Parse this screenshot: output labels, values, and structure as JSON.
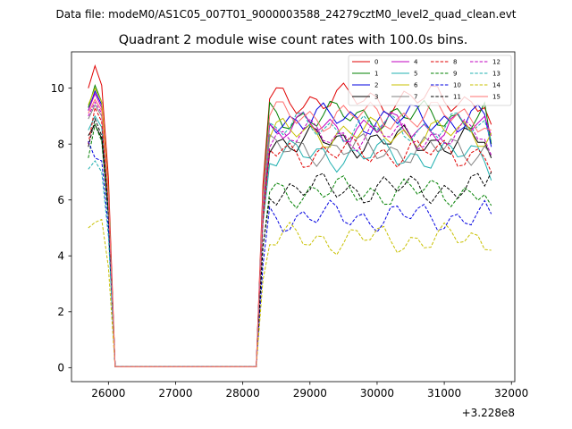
{
  "suptitle": "Data file: modeM0/AS1C05_007T01_9000003588_24279cztM0_level2_quad_clean.evt",
  "chart_data": {
    "type": "line",
    "title": "Quadrant 2 module wise count rates with 100.0s bins.",
    "xlabel": "",
    "ylabel": "",
    "x_offset_label": "+3.228e8",
    "xlim": [
      25450,
      32050
    ],
    "ylim": [
      -0.5,
      11.3
    ],
    "xticks": [
      26000,
      27000,
      28000,
      29000,
      30000,
      31000,
      32000
    ],
    "xtick_labels": [
      "26000",
      "27000",
      "28000",
      "29000",
      "30000",
      "31000",
      "32000"
    ],
    "yticks": [
      0,
      2,
      4,
      6,
      8,
      10
    ],
    "ytick_labels": [
      "0",
      "2",
      "4",
      "6",
      "8",
      "10"
    ],
    "grid": false,
    "legend_position": "top-right",
    "x": [
      25700,
      25800,
      25900,
      26000,
      26100,
      26200,
      26300,
      26400,
      26500,
      26600,
      26700,
      26800,
      26900,
      27000,
      27100,
      27200,
      27300,
      27400,
      27500,
      27600,
      27700,
      27800,
      27900,
      28000,
      28100,
      28200,
      28300,
      28400,
      28500,
      28600,
      28700,
      28800,
      28900,
      29000,
      29100,
      29200,
      29300,
      29400,
      29500,
      29600,
      29700,
      29800,
      29900,
      30000,
      30100,
      30200,
      30300,
      30400,
      30500,
      30600,
      30700,
      30800,
      30900,
      31000,
      31100,
      31200,
      31300,
      31400,
      31500,
      31600,
      31700
    ],
    "series": [
      {
        "name": "0",
        "color": "#e00000",
        "dash": "solid",
        "start": [
          10.0,
          10.8,
          10.1,
          6.8
        ],
        "plateau": 9.6,
        "end": 8.7
      },
      {
        "name": "1",
        "color": "#008000",
        "dash": "solid",
        "start": [
          9.3,
          10.1,
          9.5,
          6.3
        ],
        "plateau": 9.0,
        "end": 8.0
      },
      {
        "name": "2",
        "color": "#0000e0",
        "dash": "solid",
        "start": [
          9.2,
          9.9,
          9.4,
          6.2
        ],
        "plateau": 8.9,
        "end": 7.9
      },
      {
        "name": "3",
        "color": "#000000",
        "dash": "solid",
        "start": [
          8.3,
          8.7,
          8.2,
          5.5
        ],
        "plateau": 8.1,
        "end": 7.5
      },
      {
        "name": "4",
        "color": "#c000c0",
        "dash": "solid",
        "start": [
          9.2,
          9.8,
          9.3,
          6.1
        ],
        "plateau": 8.6,
        "end": 8.3
      },
      {
        "name": "5",
        "color": "#20b0b0",
        "dash": "solid",
        "start": [
          8.5,
          9.0,
          8.6,
          5.7
        ],
        "plateau": 7.6,
        "end": 6.7
      },
      {
        "name": "6",
        "color": "#c8c000",
        "dash": "solid",
        "start": [
          9.4,
          10.0,
          9.5,
          6.3
        ],
        "plateau": 8.4,
        "end": 8.4
      },
      {
        "name": "7",
        "color": "#808080",
        "dash": "solid",
        "start": [
          8.9,
          9.4,
          9.0,
          6.0
        ],
        "plateau": 7.8,
        "end": 7.6
      },
      {
        "name": "8",
        "color": "#e00000",
        "dash": "dashed",
        "start": [
          8.0,
          9.3,
          8.8,
          5.9
        ],
        "plateau": 7.7,
        "end": 7.0
      },
      {
        "name": "9",
        "color": "#008000",
        "dash": "dashed",
        "start": [
          7.5,
          8.7,
          8.1,
          5.4
        ],
        "plateau": 6.3,
        "end": 5.8
      },
      {
        "name": "10",
        "color": "#0000e0",
        "dash": "dashed",
        "start": [
          8.1,
          7.5,
          7.4,
          5.0
        ],
        "plateau": 5.4,
        "end": 5.5
      },
      {
        "name": "11",
        "color": "#000000",
        "dash": "dashed",
        "start": [
          7.9,
          8.9,
          8.3,
          5.6
        ],
        "plateau": 6.4,
        "end": 7.0
      },
      {
        "name": "12",
        "color": "#c000c0",
        "dash": "dashed",
        "start": [
          9.0,
          9.5,
          9.1,
          6.1
        ],
        "plateau": 8.3,
        "end": 7.6
      },
      {
        "name": "13",
        "color": "#20b0b0",
        "dash": "dashed",
        "start": [
          7.1,
          7.4,
          7.0,
          4.7
        ],
        "plateau": 8.6,
        "end": 8.1
      },
      {
        "name": "14",
        "color": "#c8c000",
        "dash": "dashed",
        "start": [
          5.0,
          5.2,
          5.3,
          3.6
        ],
        "plateau": 4.6,
        "end": 4.2
      },
      {
        "name": "15",
        "color": "#ff7070",
        "dash": "solid",
        "start": [
          9.1,
          9.6,
          9.2,
          6.1
        ],
        "plateau": 9.0,
        "end": 8.5
      }
    ]
  }
}
